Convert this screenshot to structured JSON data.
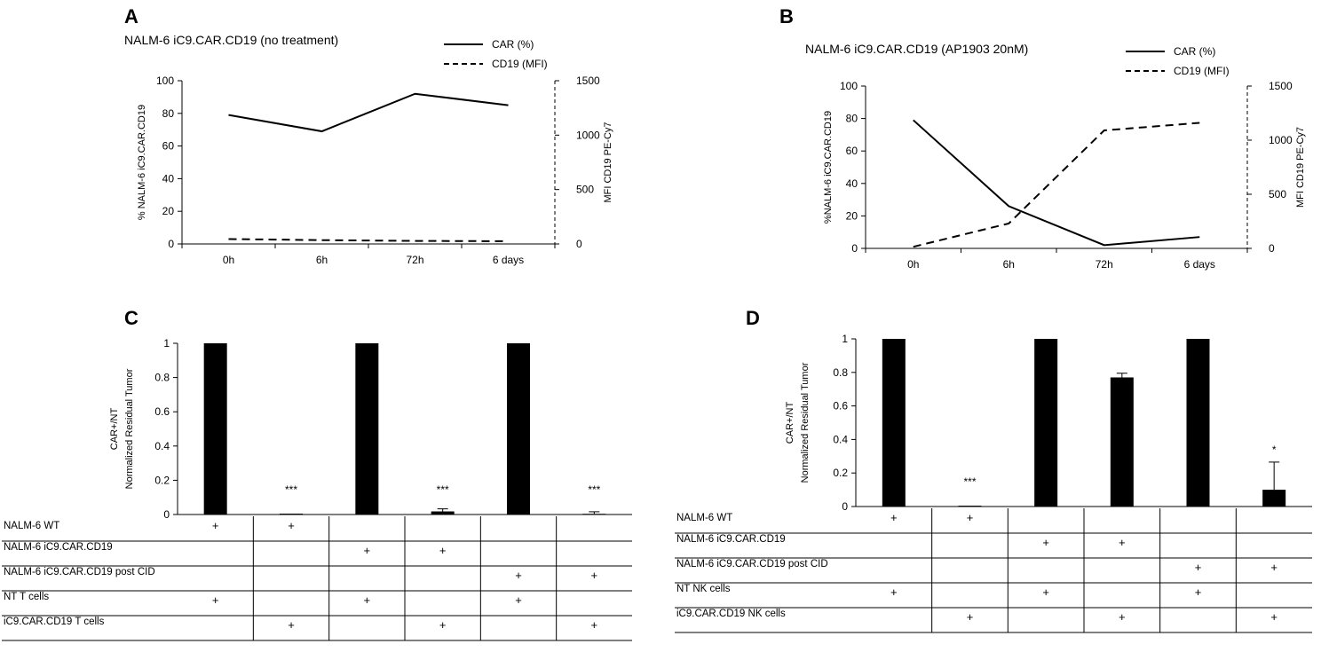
{
  "colors": {
    "ink": "#000000",
    "background": "#ffffff",
    "bar": "#000000"
  },
  "chart_data": [
    {
      "panel": "A",
      "type": "line",
      "title": "NALM-6 iC9.CAR.CD19 (no treatment)",
      "categories": [
        "0h",
        "6h",
        "72h",
        "6 days"
      ],
      "y_left": {
        "label": "% NALM-6 iC9.CAR.CD19",
        "range": [
          0,
          100
        ],
        "ticks": [
          "0",
          "20",
          "40",
          "60",
          "80",
          "100"
        ]
      },
      "y_right": {
        "label": "MFI CD19 PE-Cy7",
        "range": [
          0,
          1500
        ],
        "ticks": [
          "0",
          "500",
          "1000",
          "1500"
        ]
      },
      "legend": {
        "position": "top-right",
        "entries": [
          "CAR (%)",
          "CD19 (MFI)"
        ]
      },
      "series": [
        {
          "name": "CAR (%)",
          "axis": "left",
          "style": "solid",
          "values": [
            79,
            69,
            92,
            85
          ]
        },
        {
          "name": "CD19 (MFI)",
          "axis": "right",
          "style": "dashed",
          "values": [
            45,
            35,
            28,
            25
          ]
        }
      ]
    },
    {
      "panel": "B",
      "type": "line",
      "title": "NALM-6 iC9.CAR.CD19 (AP1903 20nM)",
      "categories": [
        "0h",
        "6h",
        "72h",
        "6 days"
      ],
      "y_left": {
        "label": "%NALM-6 iC9.CAR.CD19",
        "range": [
          0,
          100
        ],
        "ticks": [
          "0",
          "20",
          "40",
          "60",
          "80",
          "100"
        ]
      },
      "y_right": {
        "label": "MFI CD19 PE-Cy7",
        "range": [
          0,
          1500
        ],
        "ticks": [
          "0",
          "500",
          "1000",
          "1500"
        ]
      },
      "legend": {
        "position": "top-right",
        "entries": [
          "CAR (%)",
          "CD19 (MFI)"
        ]
      },
      "series": [
        {
          "name": "CAR (%)",
          "axis": "left",
          "style": "solid",
          "values": [
            79,
            26,
            2,
            7
          ]
        },
        {
          "name": "CD19 (MFI)",
          "axis": "right",
          "style": "dashed",
          "values": [
            15,
            230,
            1090,
            1160
          ]
        }
      ]
    },
    {
      "panel": "C",
      "type": "bar",
      "ylabel": [
        "CAR+/NT",
        "Normalized Residual Tumor"
      ],
      "ylim": [
        0,
        1
      ],
      "ticks": [
        "0",
        "0.2",
        "0.4",
        "0.6",
        "0.8",
        "1"
      ],
      "values": [
        1,
        0.005,
        1,
        0.018,
        1,
        0.004
      ],
      "errors": [
        0,
        0,
        0,
        0.015,
        0,
        0.012
      ],
      "significance": [
        "",
        "***",
        "",
        "***",
        "",
        "***"
      ],
      "table": {
        "rows": [
          {
            "label": "NALM-6  WT",
            "marks": [
              "+",
              "+",
              "",
              "",
              "",
              ""
            ]
          },
          {
            "label": "NALM-6  iC9.CAR.CD19",
            "marks": [
              "",
              "",
              "+",
              "+",
              "",
              ""
            ]
          },
          {
            "label": "NALM-6  iC9.CAR.CD19 post CID",
            "marks": [
              "",
              "",
              "",
              "",
              "+",
              "+"
            ]
          },
          {
            "label": "NT T cells",
            "marks": [
              "+",
              "",
              "+",
              "",
              "+",
              ""
            ]
          },
          {
            "label": "iC9.CAR.CD19 T cells",
            "marks": [
              "",
              "+",
              "",
              "+",
              "",
              "+"
            ]
          }
        ]
      }
    },
    {
      "panel": "D",
      "type": "bar",
      "ylabel": [
        "CAR+/NT",
        "Normalized Residual Tumor"
      ],
      "ylim": [
        0,
        1
      ],
      "ticks": [
        "0",
        "0.2",
        "0.4",
        "0.6",
        "0.8",
        "1"
      ],
      "values": [
        1,
        0.005,
        1,
        0.77,
        1,
        0.1
      ],
      "errors": [
        0,
        0,
        0,
        0.025,
        0,
        0.165
      ],
      "significance": [
        "",
        "***",
        "",
        "",
        "",
        "*"
      ],
      "table": {
        "rows": [
          {
            "label": "NALM-6  WT",
            "marks": [
              "+",
              "+",
              "",
              "",
              "",
              ""
            ]
          },
          {
            "label": "NALM-6  iC9.CAR.CD19",
            "marks": [
              "",
              "",
              "+",
              "+",
              "",
              ""
            ]
          },
          {
            "label": "NALM-6  iC9.CAR.CD19 post CID",
            "marks": [
              "",
              "",
              "",
              "",
              "+",
              "+"
            ]
          },
          {
            "label": "NT NK cells",
            "marks": [
              "+",
              "",
              "+",
              "",
              "+",
              ""
            ]
          },
          {
            "label": "iC9.CAR.CD19 NK cells",
            "marks": [
              "",
              "+",
              "",
              "+",
              "",
              "+"
            ]
          }
        ]
      }
    }
  ]
}
